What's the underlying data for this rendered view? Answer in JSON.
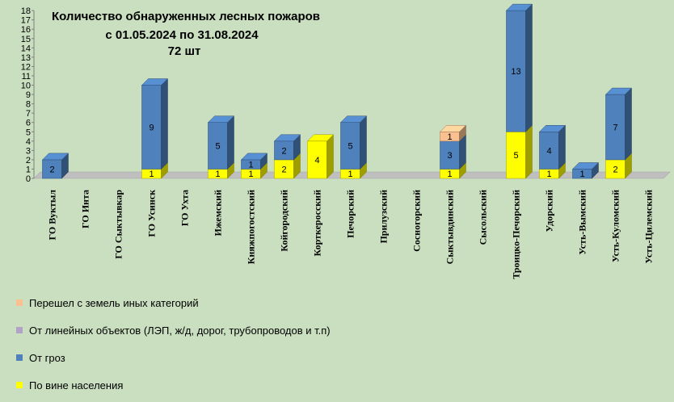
{
  "chart_data": {
    "type": "bar",
    "stacked": true,
    "three_d": true,
    "title_lines": [
      "Количество обнаруженных лесных пожаров",
      "с 01.05.2024  по  31.08.2024",
      "72 шт"
    ],
    "xlabel": "",
    "ylabel": "",
    "ylim": [
      0,
      18
    ],
    "yticks": [
      "0",
      "1",
      "2",
      "3",
      "4",
      "5",
      "6",
      "7",
      "8",
      "9",
      "10",
      "11",
      "12",
      "13",
      "14",
      "15",
      "16",
      "17",
      "18"
    ],
    "categories": [
      "ГО Вуктыл",
      "ГО Инта",
      "ГО Сыктывкар",
      "ГО Усинск",
      "ГО Ухта",
      "Ижемский",
      "Княжпогостский",
      "Койгородский",
      "Корткеросский",
      "Печорский",
      "Прилузский",
      "Сосногорский",
      "Сыктывдинский",
      "Сысольский",
      "Троицко-Печорский",
      "Удорский",
      "Усть-Вымский",
      "Усть-Куломский",
      "Усть-Цилемский"
    ],
    "series": [
      {
        "name": "По вине населения",
        "color": "#ffff00",
        "values": [
          0,
          0,
          0,
          1,
          0,
          1,
          1,
          2,
          4,
          1,
          0,
          0,
          1,
          0,
          5,
          1,
          0,
          2,
          0
        ]
      },
      {
        "name": "От гроз",
        "color": "#4f81bd",
        "values": [
          2,
          0,
          0,
          9,
          0,
          5,
          1,
          2,
          0,
          5,
          0,
          0,
          3,
          0,
          13,
          4,
          1,
          7,
          0
        ]
      },
      {
        "name": "От линейных объектов (ЛЭП, ж/д, дорог, трубопроводов  и т.п)",
        "color": "#b3a2c7",
        "values": [
          0,
          0,
          0,
          0,
          0,
          0,
          0,
          0,
          0,
          0,
          0,
          0,
          0,
          0,
          0,
          0,
          0,
          0,
          0
        ]
      },
      {
        "name": "Перешел с земель иных категорий",
        "color": "#fac090",
        "values": [
          0,
          0,
          0,
          0,
          0,
          0,
          0,
          0,
          0,
          0,
          0,
          0,
          1,
          0,
          0,
          0,
          0,
          0,
          0
        ]
      }
    ],
    "legend_order": [
      3,
      2,
      1,
      0
    ],
    "legend_position": "bottom-left"
  }
}
